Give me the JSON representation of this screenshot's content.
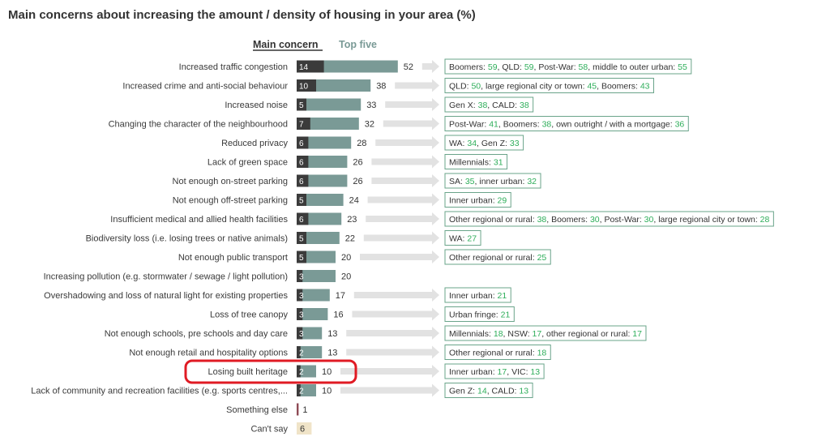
{
  "title": "Main concerns about increasing the amount / density of housing in your area (%)",
  "legend": {
    "main": "Main concern",
    "top5": "Top five"
  },
  "colors": {
    "main": "#3b3b3b",
    "top5": "#7a9a96",
    "arrow": "#e2e2e2",
    "callout_border": "#6aa48a",
    "callout_value": "#2eae5a",
    "highlight": "#e01b24",
    "something_else": "#8e4a55",
    "cant_say": "#f0e4c8",
    "cant_say_text": "#8a7a50"
  },
  "chart_data": {
    "type": "bar",
    "orientation": "horizontal",
    "title": "Main concerns about increasing the amount / density of housing in your area (%)",
    "categories": [
      "Increased traffic congestion",
      "Increased crime and anti-social behaviour",
      "Increased noise",
      "Changing the character of the neighbourhood",
      "Reduced privacy",
      "Lack of green space",
      "Not enough on-street parking",
      "Not enough off-street parking",
      "Insufficient medical and allied health facilities",
      "Biodiversity loss (i.e. losing trees or native animals)",
      "Not enough public transport",
      "Increasing pollution (e.g. stormwater / sewage / light pollution)",
      "Overshadowing and loss of natural light for existing properties",
      "Loss of tree canopy",
      "Not enough schools, pre schools and day care",
      "Not enough retail and hospitality options",
      "Losing built heritage",
      "Lack of community and recreation facilities (e.g. sports centres,...",
      "Something else",
      "Can't say"
    ],
    "series": [
      {
        "name": "Main concern",
        "values": [
          14,
          10,
          5,
          7,
          6,
          6,
          6,
          5,
          6,
          5,
          5,
          3,
          3,
          3,
          3,
          2,
          2,
          2,
          1,
          6
        ]
      },
      {
        "name": "Top five",
        "values": [
          52,
          38,
          33,
          32,
          28,
          26,
          26,
          24,
          23,
          22,
          20,
          20,
          17,
          16,
          13,
          13,
          10,
          10,
          null,
          null
        ]
      }
    ],
    "highlighted_category": "Losing built heritage",
    "callouts": [
      [
        {
          "t": "Boomers: "
        },
        {
          "v": "59"
        },
        {
          "t": ", QLD: "
        },
        {
          "v": "59"
        },
        {
          "t": ", Post-War: "
        },
        {
          "v": "58"
        },
        {
          "t": ", middle to outer urban: "
        },
        {
          "v": "55"
        }
      ],
      [
        {
          "t": "QLD: "
        },
        {
          "v": "50"
        },
        {
          "t": ", large regional city or town: "
        },
        {
          "v": "45"
        },
        {
          "t": ", Boomers: "
        },
        {
          "v": "43"
        }
      ],
      [
        {
          "t": "Gen X: "
        },
        {
          "v": "38"
        },
        {
          "t": ", CALD: "
        },
        {
          "v": "38"
        }
      ],
      [
        {
          "t": "Post-War: "
        },
        {
          "v": "41"
        },
        {
          "t": ", Boomers: "
        },
        {
          "v": "38"
        },
        {
          "t": ", own outright / with a mortgage: "
        },
        {
          "v": "36"
        }
      ],
      [
        {
          "t": "WA: "
        },
        {
          "v": "34"
        },
        {
          "t": ", Gen Z: "
        },
        {
          "v": "33"
        }
      ],
      [
        {
          "t": "Millennials: "
        },
        {
          "v": "31"
        }
      ],
      [
        {
          "t": "SA: "
        },
        {
          "v": "35"
        },
        {
          "t": ", inner urban: "
        },
        {
          "v": "32"
        }
      ],
      [
        {
          "t": "Inner urban: "
        },
        {
          "v": "29"
        }
      ],
      [
        {
          "t": "Other regional or rural: "
        },
        {
          "v": "38"
        },
        {
          "t": ", Boomers: "
        },
        {
          "v": "30"
        },
        {
          "t": ", Post-War: "
        },
        {
          "v": "30"
        },
        {
          "t": ", large regional city or town: "
        },
        {
          "v": "28"
        }
      ],
      [
        {
          "t": "WA: "
        },
        {
          "v": "27"
        }
      ],
      [
        {
          "t": "Other regional or rural: "
        },
        {
          "v": "25"
        }
      ],
      null,
      [
        {
          "t": "Inner urban: "
        },
        {
          "v": "21"
        }
      ],
      [
        {
          "t": "Urban fringe: "
        },
        {
          "v": "21"
        }
      ],
      [
        {
          "t": "Millennials: "
        },
        {
          "v": "18"
        },
        {
          "t": ", NSW: "
        },
        {
          "v": "17"
        },
        {
          "t": ", other regional or rural: "
        },
        {
          "v": "17"
        }
      ],
      [
        {
          "t": "Other regional or rural: "
        },
        {
          "v": "18"
        }
      ],
      [
        {
          "t": "Inner urban: "
        },
        {
          "v": "17"
        },
        {
          "t": ", VIC: "
        },
        {
          "v": "13"
        }
      ],
      [
        {
          "t": "Gen Z: "
        },
        {
          "v": "14"
        },
        {
          "t": ", CALD: "
        },
        {
          "v": "13"
        }
      ],
      null,
      null
    ]
  }
}
